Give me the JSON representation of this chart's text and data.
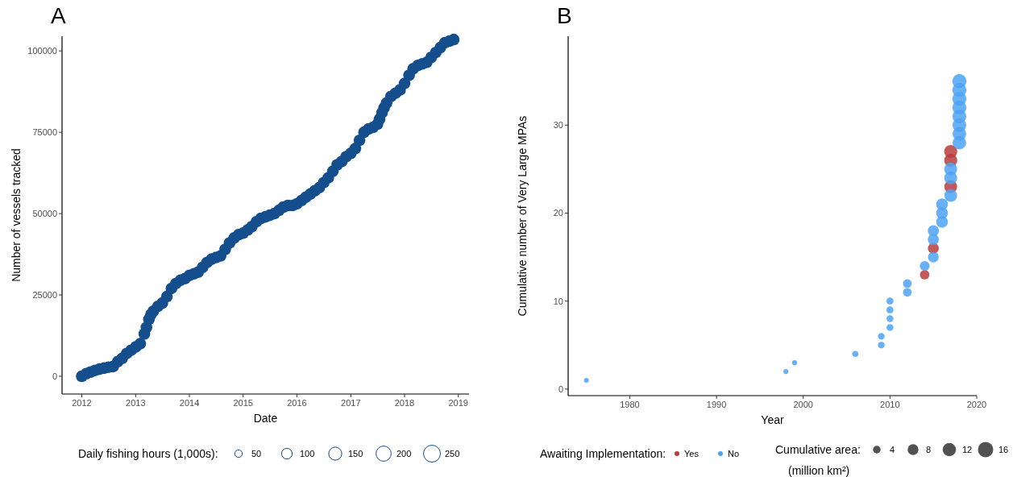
{
  "chart_data": [
    {
      "type": "bubble",
      "title": "A",
      "xlabel": "Date",
      "ylabel": "Number of vessels tracked",
      "legend_title": "Daily fishing hours (1,000s):",
      "marker": "circle",
      "grid": false,
      "xlim": [
        "2011-08-20",
        "2019-03-15"
      ],
      "xticks": [
        "2012",
        "2013",
        "2014",
        "2015",
        "2016",
        "2017",
        "2018",
        "2019"
      ],
      "ylim": [
        -5450,
        104500
      ],
      "yticks": [
        0,
        25000,
        50000,
        75000,
        100000
      ],
      "size_legend": [
        50,
        100,
        150,
        200,
        250
      ],
      "series": [
        {
          "color": "#144e8c",
          "x": [
            "2012-01",
            "2012-02",
            "2012-03",
            "2012-04",
            "2012-05",
            "2012-06",
            "2012-07",
            "2012-08",
            "2012-09",
            "2012-10",
            "2012-11",
            "2012-12",
            "2013-01",
            "2013-02",
            "2013-03",
            "2013-03-15",
            "2013-04",
            "2013-04-15",
            "2013-05",
            "2013-06",
            "2013-07",
            "2013-08",
            "2013-09",
            "2013-10",
            "2013-11",
            "2013-12",
            "2014-01",
            "2014-02",
            "2014-03",
            "2014-04",
            "2014-05",
            "2014-06",
            "2014-07",
            "2014-08",
            "2014-09",
            "2014-10",
            "2014-11",
            "2014-12",
            "2015-01",
            "2015-02",
            "2015-03",
            "2015-04",
            "2015-05",
            "2015-06",
            "2015-07",
            "2015-08",
            "2015-09",
            "2015-10",
            "2015-11",
            "2015-12",
            "2016-01",
            "2016-02",
            "2016-03",
            "2016-04",
            "2016-05",
            "2016-06",
            "2016-07",
            "2016-08",
            "2016-09",
            "2016-10",
            "2016-11",
            "2016-12",
            "2017-01",
            "2017-02",
            "2017-03",
            "2017-04",
            "2017-05",
            "2017-06",
            "2017-07",
            "2017-07-15",
            "2017-08",
            "2017-08-15",
            "2017-09",
            "2017-10",
            "2017-11",
            "2017-12",
            "2018-01",
            "2018-02",
            "2018-03",
            "2018-04",
            "2018-05",
            "2018-06",
            "2018-07",
            "2018-08",
            "2018-09",
            "2018-10",
            "2018-11",
            "2018-12"
          ],
          "values": [
            0,
            800,
            1300,
            1800,
            2200,
            2500,
            2800,
            3000,
            4500,
            5500,
            7000,
            8000,
            9000,
            10000,
            13000,
            15000,
            17500,
            19000,
            20000,
            21500,
            22500,
            24500,
            27000,
            28500,
            29500,
            30000,
            31000,
            31500,
            32000,
            33500,
            35000,
            36000,
            36500,
            37000,
            39000,
            41000,
            42500,
            43500,
            44000,
            45000,
            46000,
            47500,
            48500,
            49000,
            49500,
            50000,
            51000,
            52000,
            52500,
            52500,
            53000,
            54000,
            55000,
            56000,
            57000,
            58000,
            59500,
            61000,
            63000,
            65000,
            66000,
            67500,
            68500,
            70000,
            72500,
            75000,
            76000,
            76500,
            77500,
            79000,
            81000,
            82500,
            84000,
            86000,
            87000,
            88000,
            90000,
            92500,
            94500,
            95500,
            96000,
            96500,
            98000,
            99500,
            101000,
            102500,
            103000,
            103500
          ],
          "sizes": [
            120,
            120,
            120,
            120,
            120,
            120,
            120,
            120,
            120,
            120,
            120,
            120,
            120,
            120,
            120,
            120,
            120,
            120,
            120,
            120,
            120,
            120,
            120,
            120,
            120,
            120,
            120,
            120,
            120,
            120,
            120,
            120,
            120,
            120,
            120,
            120,
            120,
            120,
            120,
            120,
            120,
            120,
            120,
            120,
            120,
            120,
            120,
            120,
            120,
            120,
            120,
            120,
            120,
            120,
            120,
            120,
            120,
            120,
            120,
            120,
            120,
            120,
            120,
            120,
            120,
            120,
            120,
            120,
            120,
            120,
            120,
            120,
            120,
            120,
            120,
            120,
            120,
            120,
            120,
            120,
            120,
            120,
            120,
            120,
            120,
            120,
            120,
            120
          ]
        }
      ]
    },
    {
      "type": "bubble",
      "title": "B",
      "xlabel": "Year",
      "ylabel": "Cumulative number of Very Large MPAs",
      "legend_title": "Awaiting Implementation:",
      "legend": "bottom",
      "marker": "circle",
      "grid": false,
      "annotations": [
        "Cumulative area:",
        "(million km²)"
      ],
      "xlim": [
        1972.9,
        2020
      ],
      "xticks": [
        1980,
        1990,
        2000,
        2010,
        2020
      ],
      "ylim": [
        -0.74,
        40.1
      ],
      "yticks": [
        0,
        10,
        20,
        30
      ],
      "size_legend": [
        4,
        8,
        12,
        16
      ],
      "series": [
        {
          "name": "Yes",
          "color": "#b83c3c",
          "x": [
            2014,
            2015,
            2017,
            2017,
            2017
          ],
          "values": [
            13,
            16,
            23,
            26,
            27
          ],
          "sizes": [
            6.2,
            8.2,
            11.2,
            11.6,
            11.8
          ]
        },
        {
          "name": "No",
          "color": "#4ea3f5",
          "x": [
            1975,
            1998,
            1999,
            2006,
            2009,
            2009,
            2010,
            2010,
            2010,
            2010,
            2012,
            2012,
            2014,
            2015,
            2015,
            2015,
            2016,
            2016,
            2016,
            2017,
            2017,
            2017,
            2018,
            2018,
            2018,
            2018,
            2018,
            2018,
            2018,
            2018
          ],
          "values": [
            1,
            2,
            3,
            4,
            5,
            6,
            7,
            8,
            9,
            10,
            11,
            12,
            14,
            15,
            17,
            18,
            19,
            20,
            21,
            22,
            24,
            25,
            28,
            29,
            30,
            31,
            32,
            33,
            34,
            35
          ],
          "sizes": [
            1.6,
            1.7,
            1.7,
            2.6,
            3.0,
            3.1,
            3.3,
            3.3,
            3.4,
            3.4,
            5.1,
            5.2,
            6.6,
            8.0,
            8.4,
            8.5,
            9.3,
            9.4,
            9.5,
            11.1,
            11.4,
            11.5,
            12.4,
            12.6,
            12.8,
            13.0,
            13.2,
            13.4,
            13.6,
            13.8
          ]
        }
      ]
    }
  ]
}
